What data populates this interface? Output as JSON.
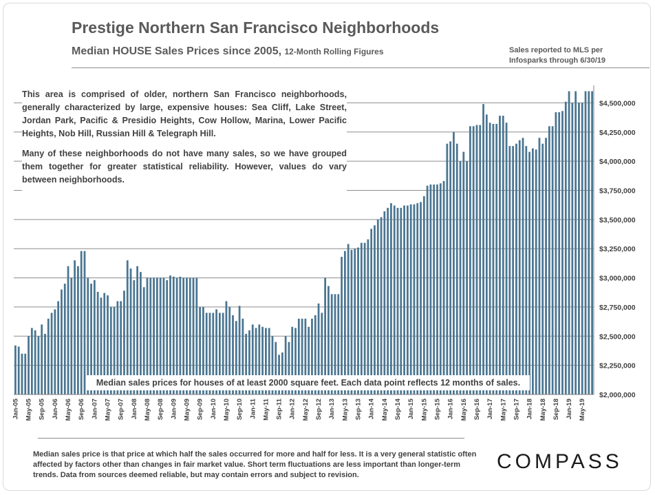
{
  "chart_data": {
    "type": "bar",
    "title": "Prestige Northern San Francisco Neighborhoods",
    "subtitle": "Median HOUSE Sales Prices since 2005,",
    "subtitle_small": "12-Month Rolling Figures",
    "source": [
      "Sales reported to MLS per",
      "Infosparks through 6/30/19"
    ],
    "ylim": [
      2000000,
      4650000
    ],
    "yticks": [
      2000000,
      2250000,
      2500000,
      2750000,
      3000000,
      3250000,
      3500000,
      3750000,
      4000000,
      4250000,
      4500000
    ],
    "ytick_labels": [
      "$2,000,000",
      "$2,250,000",
      "$2,500,000",
      "$2,750,000",
      "$3,000,000",
      "$3,250,000",
      "$3,500,000",
      "$3,750,000",
      "$4,000,000",
      "$4,250,000",
      "$4,500,000"
    ],
    "y_axis_side": "right",
    "grid": true,
    "bar_color": "#4a7591",
    "tick_labels": [
      "Jan-05",
      "May-05",
      "Sep-05",
      "Jan-06",
      "May-06",
      "Sep-06",
      "Jan-07",
      "May-07",
      "Sep-07",
      "Jan-08",
      "May-08",
      "Sep-08",
      "Jan-09",
      "May-09",
      "Sep-09",
      "Jan-10",
      "May-10",
      "Sep-10",
      "Jan-11",
      "May-11",
      "Sep-11",
      "Jan-12",
      "May-12",
      "Sep-12",
      "Jan-13",
      "May-13",
      "Sep-13",
      "Jan-14",
      "May-14",
      "Sep-14",
      "Jan-15",
      "May-15",
      "Sep-15",
      "Jan-16",
      "May-16",
      "Sep-16",
      "Jan-17",
      "May-17",
      "Sep-17",
      "Jan-18",
      "May-18",
      "Sep-18",
      "Jan-19",
      "May-19"
    ],
    "values": [
      2420000,
      2410000,
      2350000,
      2350000,
      2500000,
      2570000,
      2550000,
      2500000,
      2600000,
      2520000,
      2650000,
      2700000,
      2730000,
      2800000,
      2900000,
      2950000,
      3100000,
      3000000,
      3150000,
      3100000,
      3230000,
      3230000,
      3000000,
      2950000,
      2980000,
      2880000,
      2830000,
      2870000,
      2850000,
      2750000,
      2750000,
      2800000,
      2800000,
      2890000,
      3150000,
      3080000,
      2980000,
      3100000,
      3050000,
      2920000,
      3000000,
      3000000,
      3000000,
      3000000,
      3000000,
      3000000,
      2980000,
      3020000,
      3010000,
      3000000,
      3010000,
      3000000,
      3000000,
      3000000,
      3000000,
      3000000,
      2750000,
      2750000,
      2700000,
      2700000,
      2700000,
      2730000,
      2700000,
      2700000,
      2800000,
      2750000,
      2680000,
      2630000,
      2760000,
      2650000,
      2520000,
      2550000,
      2600000,
      2570000,
      2600000,
      2580000,
      2570000,
      2570000,
      2500000,
      2450000,
      2340000,
      2360000,
      2500000,
      2450000,
      2580000,
      2570000,
      2650000,
      2650000,
      2650000,
      2580000,
      2650000,
      2680000,
      2780000,
      2700000,
      3000000,
      2930000,
      2860000,
      2860000,
      2860000,
      3180000,
      3230000,
      3290000,
      3240000,
      3250000,
      3260000,
      3300000,
      3300000,
      3330000,
      3420000,
      3450000,
      3500000,
      3520000,
      3570000,
      3600000,
      3640000,
      3620000,
      3600000,
      3600000,
      3620000,
      3620000,
      3630000,
      3630000,
      3640000,
      3650000,
      3700000,
      3790000,
      3800000,
      3800000,
      3800000,
      3810000,
      3830000,
      4150000,
      4170000,
      4250000,
      4150000,
      4000000,
      4080000,
      4000000,
      4300000,
      4300000,
      4310000,
      4310000,
      4490000,
      4400000,
      4330000,
      4320000,
      4320000,
      4390000,
      4390000,
      4330000,
      4130000,
      4130000,
      4150000,
      4180000,
      4200000,
      4130000,
      4080000,
      4110000,
      4100000,
      4200000,
      4150000,
      4200000,
      4300000,
      4300000,
      4420000,
      4420000,
      4430000,
      4510000,
      4600000,
      4500000,
      4600000,
      4500000,
      4500000,
      4600000,
      4600000,
      4600000
    ],
    "annotation": "Median sales prices for houses of at least 2000  square feet. Each data point reflects 12 months of sales."
  },
  "description": {
    "paragraph1": "This area is comprised of older, northern San Francisco neighborhoods, generally characterized by large, expensive houses: Sea Cliff, Lake Street, Jordan Park, Pacific & Presidio Heights, Cow Hollow, Marina, Lower Pacific Heights, Nob Hill, Russian Hill & Telegraph Hill.",
    "paragraph2": "Many of these neighborhoods do not have many sales, so we have grouped them together for greater statistical reliability. However, values do vary between neighborhoods."
  },
  "footnote": "Median sales price is that price at which half the sales occurred for more and half for less. It is a very general statistic often affected by factors other than changes in fair market value. Short term fluctuations are less important than longer-term trends. Data from sources deemed reliable, but may contain errors and subject to revision.",
  "logo": "COMPASS"
}
